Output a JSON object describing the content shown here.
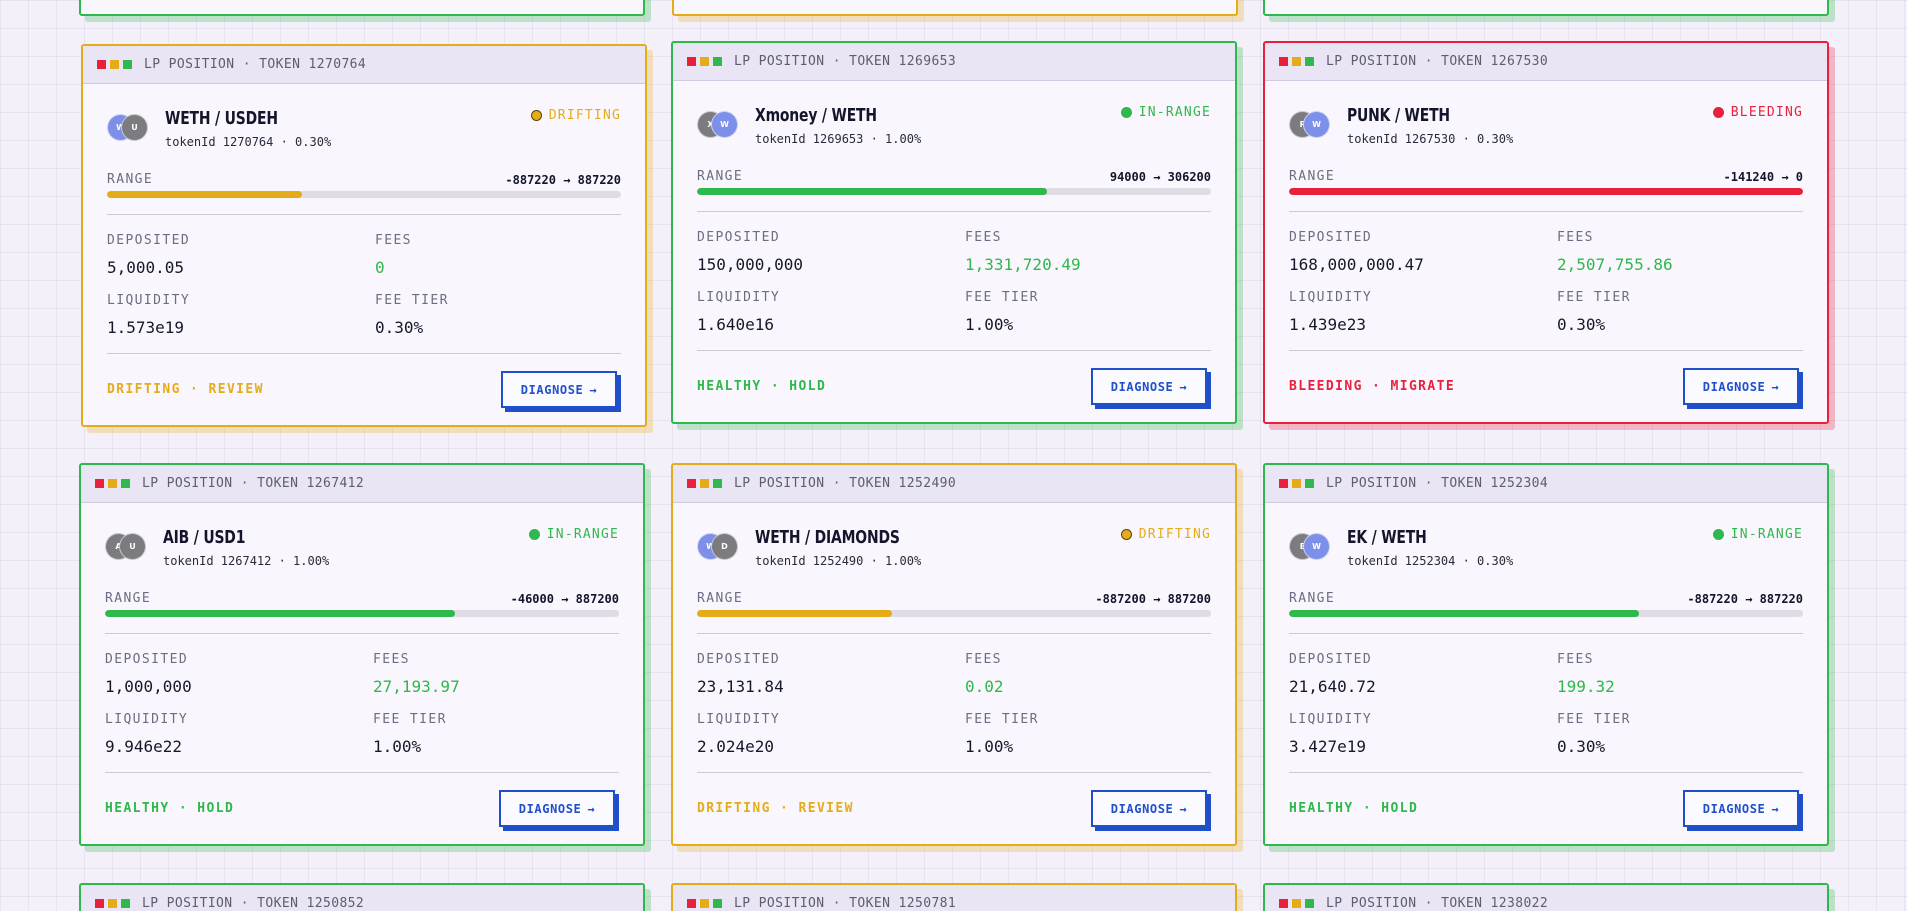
{
  "cards": [
    {
      "titlebar": "LP POSITION · TOKEN 1270764",
      "pair": "WETH / USDEH",
      "sub": "tokenId 1270764 · 0.30%",
      "token_a": "W",
      "token_b": "U",
      "status": "DRIFTING",
      "range_label": "RANGE",
      "range_value": "-887220 → 887220",
      "range_fill": 0.38,
      "deposited_label": "DEPOSITED",
      "deposited": "5,000.05",
      "fees_label": "FEES",
      "fees": "0",
      "liquidity_label": "LIQUIDITY",
      "liquidity": "1.573e19",
      "fee_tier_label": "FEE TIER",
      "fee_tier": "0.30%",
      "verdict": "DRIFTING · REVIEW",
      "button": "DIAGNOSE",
      "arrow": "→"
    },
    {
      "titlebar": "LP POSITION · TOKEN 1269653",
      "pair": "Xmoney / WETH",
      "sub": "tokenId 1269653 · 1.00%",
      "token_a": "X",
      "token_b": "W",
      "status": "IN-RANGE",
      "range_label": "RANGE",
      "range_value": "94000 → 306200",
      "range_fill": 0.68,
      "deposited_label": "DEPOSITED",
      "deposited": "150,000,000",
      "fees_label": "FEES",
      "fees": "1,331,720.49",
      "liquidity_label": "LIQUIDITY",
      "liquidity": "1.640e16",
      "fee_tier_label": "FEE TIER",
      "fee_tier": "1.00%",
      "verdict": "HEALTHY · HOLD",
      "button": "DIAGNOSE",
      "arrow": "→"
    },
    {
      "titlebar": "LP POSITION · TOKEN 1267530",
      "pair": "PUNK / WETH",
      "sub": "tokenId 1267530 · 0.30%",
      "token_a": "P",
      "token_b": "W",
      "status": "BLEEDING",
      "range_label": "RANGE",
      "range_value": "-141240 → 0",
      "range_fill": 1.0,
      "deposited_label": "DEPOSITED",
      "deposited": "168,000,000.47",
      "fees_label": "FEES",
      "fees": "2,507,755.86",
      "liquidity_label": "LIQUIDITY",
      "liquidity": "1.439e23",
      "fee_tier_label": "FEE TIER",
      "fee_tier": "0.30%",
      "verdict": "BLEEDING · MIGRATE",
      "button": "DIAGNOSE",
      "arrow": "→"
    },
    {
      "titlebar": "LP POSITION · TOKEN 1267412",
      "pair": "AIB / USD1",
      "sub": "tokenId 1267412 · 1.00%",
      "token_a": "A",
      "token_b": "U",
      "status": "IN-RANGE",
      "range_label": "RANGE",
      "range_value": "-46000 → 887200",
      "range_fill": 0.68,
      "deposited_label": "DEPOSITED",
      "deposited": "1,000,000",
      "fees_label": "FEES",
      "fees": "27,193.97",
      "liquidity_label": "LIQUIDITY",
      "liquidity": "9.946e22",
      "fee_tier_label": "FEE TIER",
      "fee_tier": "1.00%",
      "verdict": "HEALTHY · HOLD",
      "button": "DIAGNOSE",
      "arrow": "→"
    },
    {
      "titlebar": "LP POSITION · TOKEN 1252490",
      "pair": "WETH / DIAMONDS",
      "sub": "tokenId 1252490 · 1.00%",
      "token_a": "W",
      "token_b": "D",
      "status": "DRIFTING",
      "range_label": "RANGE",
      "range_value": "-887200 → 887200",
      "range_fill": 0.38,
      "deposited_label": "DEPOSITED",
      "deposited": "23,131.84",
      "fees_label": "FEES",
      "fees": "0.02",
      "liquidity_label": "LIQUIDITY",
      "liquidity": "2.024e20",
      "fee_tier_label": "FEE TIER",
      "fee_tier": "1.00%",
      "verdict": "DRIFTING · REVIEW",
      "button": "DIAGNOSE",
      "arrow": "→"
    },
    {
      "titlebar": "LP POSITION · TOKEN 1252304",
      "pair": "EK / WETH",
      "sub": "tokenId 1252304 · 0.30%",
      "token_a": "E",
      "token_b": "W",
      "status": "IN-RANGE",
      "range_label": "RANGE",
      "range_value": "-887220 → 887220",
      "range_fill": 0.68,
      "deposited_label": "DEPOSITED",
      "deposited": "21,640.72",
      "fees_label": "FEES",
      "fees": "199.32",
      "liquidity_label": "LIQUIDITY",
      "liquidity": "3.427e19",
      "fee_tier_label": "FEE TIER",
      "fee_tier": "0.30%",
      "verdict": "HEALTHY · HOLD",
      "button": "DIAGNOSE",
      "arrow": "→"
    }
  ],
  "bottom_cards": [
    {
      "titlebar": "LP POSITION · TOKEN 1250852"
    },
    {
      "titlebar": "LP POSITION · TOKEN 1250781"
    },
    {
      "titlebar": "LP POSITION · TOKEN 1238022"
    }
  ],
  "colors": {
    "healthy": "#2fb84b",
    "drifting": "#e5ac1a",
    "bleeding": "#e8203c",
    "action": "#1f4fc9"
  }
}
